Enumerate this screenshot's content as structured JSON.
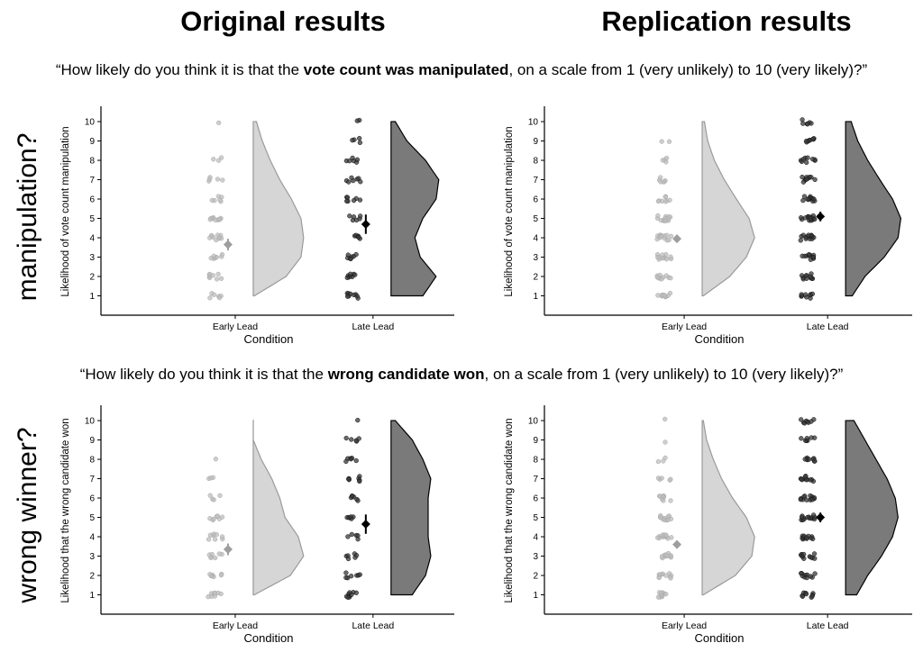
{
  "column_titles": {
    "left": "Original results",
    "right": "Replication results"
  },
  "row_labels": {
    "top": "manipulation?",
    "bottom": "wrong winner?"
  },
  "questions": {
    "q1": {
      "pre": "“How likely do you think it is that the ",
      "bold": "vote count was manipulated",
      "post": ", on a scale from 1 (very unlikely) to 10 (very likely)?”"
    },
    "q2": {
      "pre": "“How likely do you think it is that the ",
      "bold": "wrong candidate won",
      "post": ", on a scale from 1 (very unlikely) to 10 (very likely)?”"
    }
  },
  "style": {
    "early_color": "#bdbdbd",
    "early_fill": "#d6d6d6",
    "late_color": "#3a3a3a",
    "late_fill": "#7a7a7a"
  },
  "chart_data": [
    {
      "type": "raincloud",
      "panel": "original-manipulation",
      "xlabel": "Condition",
      "ylabel": "Likelihood of vote count manipulation",
      "categories": [
        "Early Lead",
        "Late Lead"
      ],
      "y_ticks": [
        1,
        2,
        3,
        4,
        5,
        6,
        7,
        8,
        9,
        10
      ],
      "ylim": [
        0,
        10.7
      ],
      "means": [
        3.65,
        4.7
      ],
      "ci": [
        [
          3.35,
          3.95
        ],
        [
          4.2,
          5.2
        ]
      ],
      "density": [
        [
          0.02,
          0.62,
          0.9,
          0.95,
          0.9,
          0.72,
          0.5,
          0.32,
          0.17,
          0.06
        ],
        [
          0.6,
          0.85,
          0.55,
          0.45,
          0.6,
          0.85,
          0.9,
          0.65,
          0.3,
          0.08
        ]
      ],
      "points": [
        [
          [
            1,
            6
          ],
          [
            2,
            8
          ],
          [
            3,
            7
          ],
          [
            4,
            10
          ],
          [
            5,
            9
          ],
          [
            6,
            6
          ],
          [
            7,
            5
          ],
          [
            8,
            3
          ],
          [
            9,
            0
          ],
          [
            10,
            1
          ]
        ],
        [
          [
            1,
            9
          ],
          [
            2,
            8
          ],
          [
            3,
            7
          ],
          [
            4,
            6
          ],
          [
            5,
            6
          ],
          [
            6,
            7
          ],
          [
            7,
            7
          ],
          [
            8,
            6
          ],
          [
            9,
            4
          ],
          [
            10,
            2
          ]
        ]
      ]
    },
    {
      "type": "raincloud",
      "panel": "replication-manipulation",
      "xlabel": "Condition",
      "ylabel": "Likelihood of vote count manipulation",
      "categories": [
        "Early Lead",
        "Late Lead"
      ],
      "y_ticks": [
        1,
        2,
        3,
        4,
        5,
        6,
        7,
        8,
        9,
        10
      ],
      "ylim": [
        0,
        10.7
      ],
      "means": [
        3.95,
        5.1
      ],
      "ci": [
        [
          3.75,
          4.15
        ],
        [
          4.85,
          5.35
        ]
      ],
      "density": [
        [
          0.02,
          0.5,
          0.8,
          0.95,
          0.85,
          0.62,
          0.4,
          0.22,
          0.1,
          0.04
        ],
        [
          0.12,
          0.35,
          0.7,
          0.95,
          1.0,
          0.85,
          0.62,
          0.4,
          0.22,
          0.1
        ]
      ],
      "points": [
        [
          [
            1,
            10
          ],
          [
            2,
            11
          ],
          [
            3,
            12
          ],
          [
            4,
            13
          ],
          [
            5,
            13
          ],
          [
            6,
            8
          ],
          [
            7,
            6
          ],
          [
            8,
            4
          ],
          [
            9,
            2
          ],
          [
            10,
            0
          ]
        ],
        [
          [
            1,
            9
          ],
          [
            2,
            11
          ],
          [
            3,
            11
          ],
          [
            4,
            14
          ],
          [
            5,
            15
          ],
          [
            6,
            13
          ],
          [
            7,
            10
          ],
          [
            8,
            9
          ],
          [
            9,
            8
          ],
          [
            10,
            6
          ]
        ]
      ]
    },
    {
      "type": "raincloud",
      "panel": "original-wrong-winner",
      "xlabel": "Condition",
      "ylabel": "Likelihood that the wrong candidate won",
      "categories": [
        "Early Lead",
        "Late Lead"
      ],
      "y_ticks": [
        1,
        2,
        3,
        4,
        5,
        6,
        7,
        8,
        9,
        10
      ],
      "ylim": [
        0,
        10.7
      ],
      "means": [
        3.35,
        4.65
      ],
      "ci": [
        [
          3.05,
          3.65
        ],
        [
          4.15,
          5.15
        ]
      ],
      "density": [
        [
          0.02,
          0.7,
          0.95,
          0.85,
          0.6,
          0.5,
          0.35,
          0.15,
          0.0,
          0.0
        ],
        [
          0.4,
          0.65,
          0.75,
          0.7,
          0.7,
          0.7,
          0.75,
          0.6,
          0.4,
          0.08
        ]
      ],
      "points": [
        [
          [
            1,
            8
          ],
          [
            2,
            7
          ],
          [
            3,
            7
          ],
          [
            4,
            8
          ],
          [
            5,
            7
          ],
          [
            6,
            4
          ],
          [
            7,
            3
          ],
          [
            8,
            1
          ],
          [
            9,
            0
          ],
          [
            10,
            0
          ]
        ],
        [
          [
            1,
            9
          ],
          [
            2,
            7
          ],
          [
            3,
            6
          ],
          [
            4,
            5
          ],
          [
            5,
            6
          ],
          [
            6,
            6
          ],
          [
            7,
            7
          ],
          [
            8,
            6
          ],
          [
            9,
            5
          ],
          [
            10,
            1
          ]
        ]
      ]
    },
    {
      "type": "raincloud",
      "panel": "replication-wrong-winner",
      "xlabel": "Condition",
      "ylabel": "Likelihood that the wrong candidate won",
      "categories": [
        "Early Lead",
        "Late Lead"
      ],
      "y_ticks": [
        1,
        2,
        3,
        4,
        5,
        6,
        7,
        8,
        9,
        10
      ],
      "ylim": [
        0,
        10.7
      ],
      "means": [
        3.6,
        5.0
      ],
      "ci": [
        [
          3.4,
          3.8
        ],
        [
          4.75,
          5.25
        ]
      ],
      "density": [
        [
          0.02,
          0.6,
          0.9,
          0.95,
          0.8,
          0.55,
          0.35,
          0.2,
          0.08,
          0.02
        ],
        [
          0.2,
          0.4,
          0.65,
          0.85,
          0.95,
          0.9,
          0.75,
          0.55,
          0.35,
          0.15
        ]
      ],
      "points": [
        [
          [
            1,
            10
          ],
          [
            2,
            11
          ],
          [
            3,
            11
          ],
          [
            4,
            12
          ],
          [
            5,
            12
          ],
          [
            6,
            8
          ],
          [
            7,
            5
          ],
          [
            8,
            3
          ],
          [
            9,
            1
          ],
          [
            10,
            1
          ]
        ],
        [
          [
            1,
            9
          ],
          [
            2,
            10
          ],
          [
            3,
            11
          ],
          [
            4,
            12
          ],
          [
            5,
            14
          ],
          [
            6,
            13
          ],
          [
            7,
            11
          ],
          [
            8,
            9
          ],
          [
            9,
            7
          ],
          [
            10,
            8
          ]
        ]
      ]
    }
  ]
}
